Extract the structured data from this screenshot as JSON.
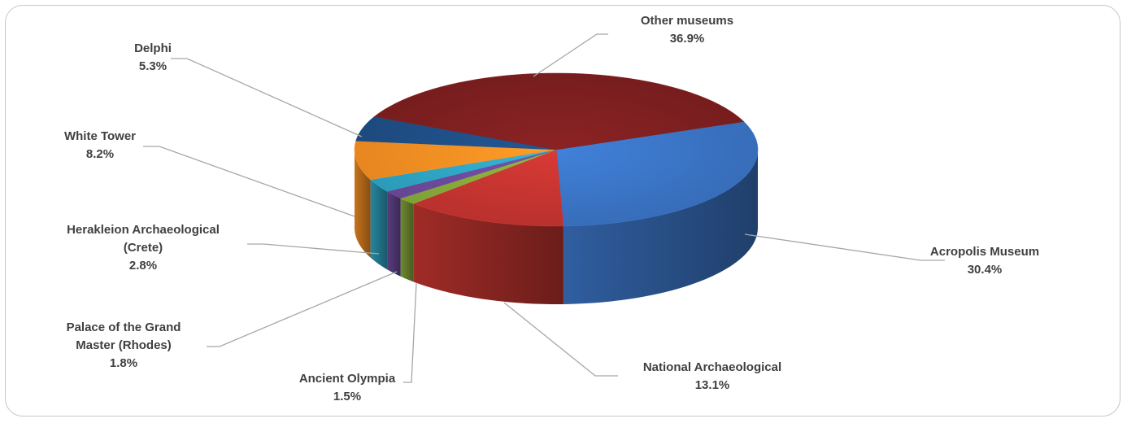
{
  "chart_data": {
    "type": "pie",
    "title": "",
    "style": "3d-pie",
    "slices": [
      {
        "key": "acropolis",
        "label_lines": [
          "Acropolis Museum"
        ],
        "value_text": "30.4%",
        "value": 30.4,
        "color": "#3a73c3"
      },
      {
        "key": "national",
        "label_lines": [
          "National Archaeological"
        ],
        "value_text": "13.1%",
        "value": 13.1,
        "color": "#c3342f"
      },
      {
        "key": "olympia",
        "label_lines": [
          "Ancient Olympia"
        ],
        "value_text": "1.5%",
        "value": 1.5,
        "color": "#86a83a"
      },
      {
        "key": "rhodes",
        "label_lines": [
          "Palace of the Grand",
          "Master (Rhodes)"
        ],
        "value_text": "1.8%",
        "value": 1.8,
        "color": "#6b4a9a"
      },
      {
        "key": "herakleion",
        "label_lines": [
          "Herakleion Archaeological",
          "(Crete)"
        ],
        "value_text": "2.8%",
        "value": 2.8,
        "color": "#2ea3c3"
      },
      {
        "key": "whitetower",
        "label_lines": [
          "White Tower"
        ],
        "value_text": "8.2%",
        "value": 8.2,
        "color": "#f38d22"
      },
      {
        "key": "delphi",
        "label_lines": [
          "Delphi"
        ],
        "value_text": "5.3%",
        "value": 5.3,
        "color": "#1e4e85"
      },
      {
        "key": "other",
        "label_lines": [
          "Other museums"
        ],
        "value_text": "36.9%",
        "value": 36.9,
        "color": "#7d1f20"
      }
    ]
  }
}
